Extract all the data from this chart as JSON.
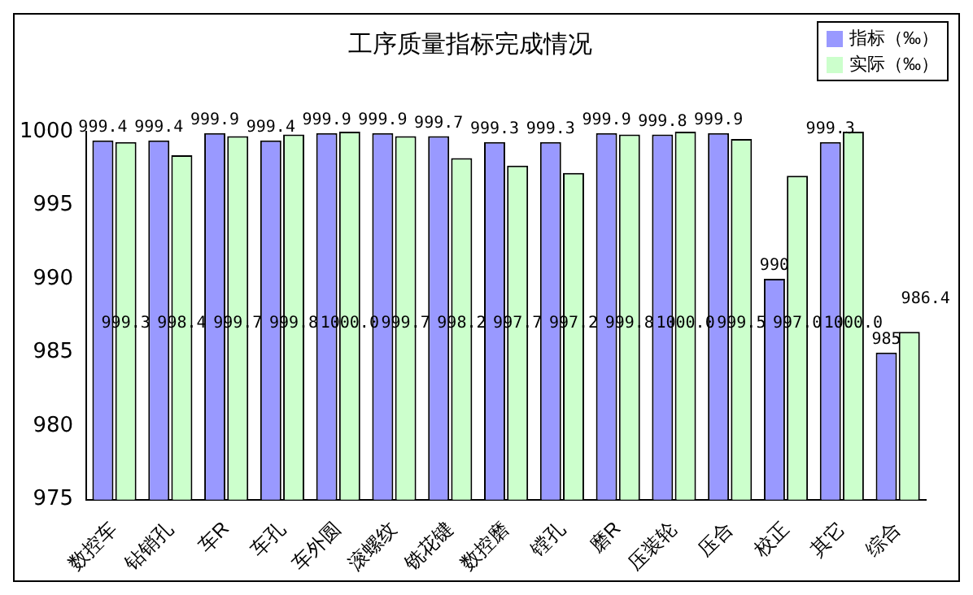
{
  "chart_data": {
    "type": "bar",
    "title": "工序质量指标完成情况",
    "categories": [
      "数控车",
      "钻销孔",
      "车R",
      "车孔",
      "车外圆",
      "滚螺纹",
      "铣花键",
      "数控磨",
      "镗孔",
      "磨R",
      "压装轮",
      "压合",
      "校正",
      "其它",
      "综合"
    ],
    "series": [
      {
        "name": "指标（‰）",
        "color": "#9999ff",
        "values": [
          999.4,
          999.4,
          999.9,
          999.4,
          999.9,
          999.9,
          999.7,
          999.3,
          999.3,
          999.9,
          999.8,
          999.9,
          990,
          999.3,
          985
        ],
        "value_labels": [
          "999.4",
          "999.4",
          "999.9",
          "999.4",
          "999.9",
          "999.9",
          "999.7",
          "999.3",
          "999.3",
          "999.9",
          "999.8",
          "999.9",
          "990",
          "999.3",
          "985"
        ]
      },
      {
        "name": "实际（‰）",
        "color": "#ccffcc",
        "values": [
          999.3,
          998.4,
          999.7,
          999.8,
          1000.0,
          999.7,
          998.2,
          997.7,
          997.2,
          999.8,
          1000.0,
          999.5,
          997.0,
          1000.0,
          986.4
        ],
        "value_labels": [
          "999.3",
          "998.4",
          "999.7",
          "999.8",
          "1000.0",
          "999.7",
          "998.2",
          "997.7",
          "997.2",
          "999.8",
          "1000.0",
          "999.5",
          "997.0",
          "1000.0",
          "986.4"
        ]
      }
    ],
    "ylim": [
      975,
      1000
    ],
    "yticks": [
      975,
      980,
      985,
      990,
      995,
      1000
    ],
    "grid": false,
    "legend": "top right"
  }
}
